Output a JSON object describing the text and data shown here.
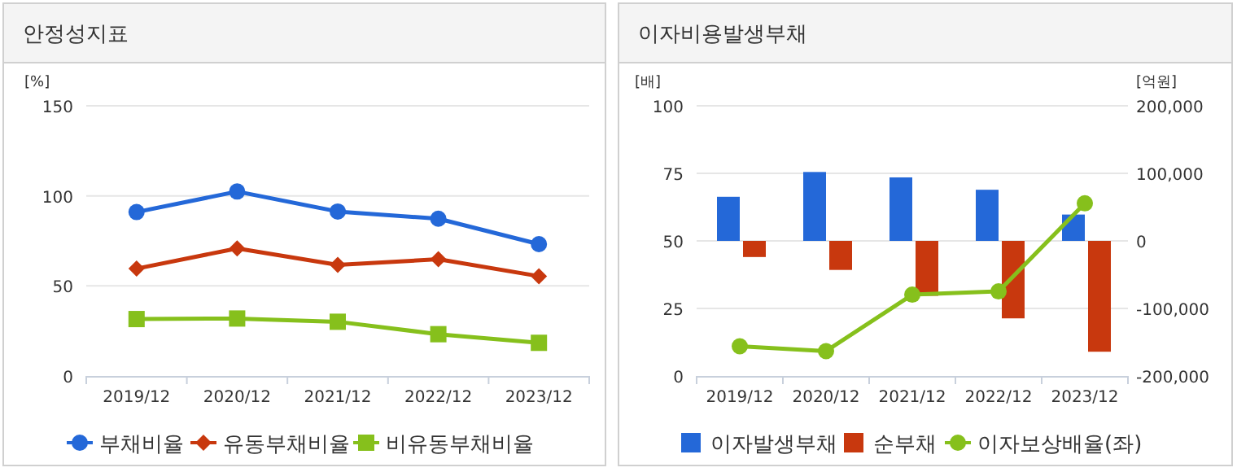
{
  "chart_data": [
    {
      "type": "line",
      "title": "안정성지표",
      "ylabel": "[%]",
      "categories": [
        "2019/12",
        "2020/12",
        "2021/12",
        "2022/12",
        "2023/12"
      ],
      "ylim": [
        0,
        150
      ],
      "yticks": [
        0,
        50,
        100,
        150
      ],
      "grid": "y",
      "legend": "bottom",
      "series": [
        {
          "name": "부채비율",
          "color": "#2468d8",
          "marker": "circle",
          "values": [
            91,
            102.4,
            91.3,
            87.3,
            73.2
          ]
        },
        {
          "name": "유동부채비율",
          "color": "#c8380e",
          "marker": "diamond",
          "values": [
            59.6,
            70.8,
            61.7,
            64.8,
            55.4
          ]
        },
        {
          "name": "비유동부채비율",
          "color": "#86c01c",
          "marker": "square",
          "values": [
            31.6,
            31.9,
            30.1,
            23.2,
            18.4
          ]
        }
      ]
    },
    {
      "type": "bar",
      "title": "이자비용발생부채",
      "ylabel": "[배]",
      "y2label": "[억원]",
      "categories": [
        "2019/12",
        "2020/12",
        "2021/12",
        "2022/12",
        "2023/12"
      ],
      "ylim": [
        0,
        100
      ],
      "yticks": [
        0,
        25,
        50,
        75,
        100
      ],
      "y2lim": [
        -200000,
        200000
      ],
      "y2ticks": [
        {
          "value": -200000,
          "label": "-200,000"
        },
        {
          "value": -100000,
          "label": "-100,000"
        },
        0,
        {
          "value": 100000,
          "label": "100,000"
        },
        {
          "value": 200000,
          "label": "200,000"
        }
      ],
      "grid": "y",
      "legend": "bottom",
      "series": [
        {
          "name": "이자발생부채",
          "color": "#2468d8",
          "axis": "y2",
          "values": [
            65300,
            102000,
            94000,
            75700,
            39000
          ]
        },
        {
          "name": "순부채",
          "color": "#c8380e",
          "axis": "y2",
          "values": [
            -23900,
            -43000,
            -81300,
            -114700,
            -164100
          ]
        },
        {
          "name": "이자보상배율(좌)",
          "type": "line",
          "color": "#86c01c",
          "marker": "circle",
          "values": [
            11.0,
            9.2,
            30.1,
            31.3,
            63.9
          ]
        }
      ]
    }
  ]
}
